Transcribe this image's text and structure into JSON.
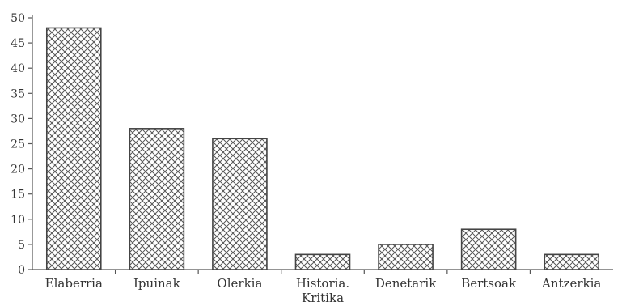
{
  "chart_data": {
    "type": "bar",
    "title": "",
    "xlabel": "",
    "ylabel": "",
    "categories": [
      "Elaberria",
      "Ipuinak",
      "Olerkia",
      "Historia.\nKritika",
      "Denetarik",
      "Bertsoak",
      "Antzerkia"
    ],
    "values": [
      48,
      28,
      26,
      3,
      5,
      8,
      3
    ],
    "ylim": [
      0,
      50
    ],
    "yticks": [
      0,
      5,
      10,
      15,
      20,
      25,
      30,
      35,
      40,
      45,
      50
    ],
    "grid": false,
    "legend": "none",
    "bar_fill": "crosshatch",
    "colors": {
      "axis": "#555555",
      "bar_stroke": "#444444",
      "hatch": "#555555",
      "background": "#ffffff"
    }
  }
}
